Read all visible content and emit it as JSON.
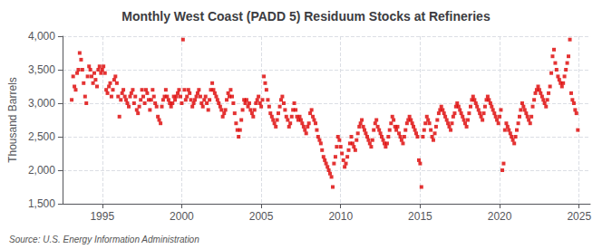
{
  "chart_data": {
    "type": "scatter",
    "title": "Monthly West Coast (PADD 5) Residuum Stocks at Refineries",
    "ylabel": "Thousand Barrels",
    "annotations": [
      "Source: U.S. Energy Information Administration"
    ],
    "color": "#dd0000",
    "marker": "square",
    "grid": true,
    "xlim": [
      1992.5,
      2025.7
    ],
    "xticks": [
      1995,
      2000,
      2005,
      2010,
      2015,
      2020,
      2025
    ],
    "ylim": [
      1500,
      4000
    ],
    "yticks": [
      {
        "value": 1500,
        "label": "1,500"
      },
      {
        "value": 2000,
        "label": "2,000"
      },
      {
        "value": 2500,
        "label": "2,500"
      },
      {
        "value": 3000,
        "label": "3,000"
      },
      {
        "value": 3500,
        "label": "3,500"
      },
      {
        "value": 4000,
        "label": "4,000"
      }
    ],
    "x": [
      1993.08,
      1993.17,
      1993.25,
      1993.33,
      1993.42,
      1993.5,
      1993.58,
      1993.67,
      1993.75,
      1993.83,
      1993.92,
      1994.0,
      1994.08,
      1994.17,
      1994.25,
      1994.33,
      1994.42,
      1994.5,
      1994.58,
      1994.67,
      1994.75,
      1994.83,
      1994.92,
      1995.0,
      1995.08,
      1995.17,
      1995.25,
      1995.33,
      1995.42,
      1995.5,
      1995.58,
      1995.67,
      1995.75,
      1995.83,
      1995.92,
      1996.0,
      1996.08,
      1996.17,
      1996.25,
      1996.33,
      1996.42,
      1996.5,
      1996.58,
      1996.67,
      1996.75,
      1996.83,
      1996.92,
      1997.0,
      1997.08,
      1997.17,
      1997.25,
      1997.33,
      1997.42,
      1997.5,
      1997.58,
      1997.67,
      1997.75,
      1997.83,
      1997.92,
      1998.0,
      1998.08,
      1998.17,
      1998.25,
      1998.33,
      1998.42,
      1998.5,
      1998.58,
      1998.67,
      1998.75,
      1998.83,
      1998.92,
      1999.0,
      1999.08,
      1999.17,
      1999.25,
      1999.33,
      1999.42,
      1999.5,
      1999.58,
      1999.67,
      1999.75,
      1999.83,
      1999.92,
      2000.0,
      2000.08,
      2000.17,
      2000.25,
      2000.33,
      2000.42,
      2000.5,
      2000.58,
      2000.67,
      2000.75,
      2000.83,
      2000.92,
      2001.0,
      2001.08,
      2001.17,
      2001.25,
      2001.33,
      2001.42,
      2001.5,
      2001.58,
      2001.67,
      2001.75,
      2001.83,
      2001.92,
      2002.0,
      2002.08,
      2002.17,
      2002.25,
      2002.33,
      2002.42,
      2002.5,
      2002.58,
      2002.67,
      2002.75,
      2002.83,
      2002.92,
      2003.0,
      2003.08,
      2003.17,
      2003.25,
      2003.33,
      2003.42,
      2003.5,
      2003.58,
      2003.67,
      2003.75,
      2003.83,
      2003.92,
      2004.0,
      2004.08,
      2004.17,
      2004.25,
      2004.33,
      2004.42,
      2004.5,
      2004.58,
      2004.67,
      2004.75,
      2004.83,
      2004.92,
      2005.0,
      2005.08,
      2005.17,
      2005.25,
      2005.33,
      2005.42,
      2005.5,
      2005.58,
      2005.67,
      2005.75,
      2005.83,
      2005.92,
      2006.0,
      2006.08,
      2006.17,
      2006.25,
      2006.33,
      2006.42,
      2006.5,
      2006.58,
      2006.67,
      2006.75,
      2006.83,
      2006.92,
      2007.0,
      2007.08,
      2007.17,
      2007.25,
      2007.33,
      2007.42,
      2007.5,
      2007.58,
      2007.67,
      2007.75,
      2007.83,
      2007.92,
      2008.0,
      2008.08,
      2008.17,
      2008.25,
      2008.33,
      2008.42,
      2008.5,
      2008.58,
      2008.67,
      2008.75,
      2008.83,
      2008.92,
      2009.0,
      2009.08,
      2009.17,
      2009.25,
      2009.33,
      2009.42,
      2009.5,
      2009.58,
      2009.67,
      2009.75,
      2009.83,
      2009.92,
      2010.0,
      2010.08,
      2010.17,
      2010.25,
      2010.33,
      2010.42,
      2010.5,
      2010.58,
      2010.67,
      2010.75,
      2010.83,
      2010.92,
      2011.0,
      2011.08,
      2011.17,
      2011.25,
      2011.33,
      2011.42,
      2011.5,
      2011.58,
      2011.67,
      2011.75,
      2011.83,
      2011.92,
      2012.0,
      2012.08,
      2012.17,
      2012.25,
      2012.33,
      2012.42,
      2012.5,
      2012.58,
      2012.67,
      2012.75,
      2012.83,
      2012.92,
      2013.0,
      2013.08,
      2013.17,
      2013.25,
      2013.33,
      2013.42,
      2013.5,
      2013.58,
      2013.67,
      2013.75,
      2013.83,
      2013.92,
      2014.0,
      2014.08,
      2014.17,
      2014.25,
      2014.33,
      2014.42,
      2014.5,
      2014.58,
      2014.67,
      2014.75,
      2014.83,
      2014.92,
      2015.0,
      2015.08,
      2015.17,
      2015.25,
      2015.33,
      2015.42,
      2015.5,
      2015.58,
      2015.67,
      2015.75,
      2015.83,
      2015.92,
      2016.0,
      2016.08,
      2016.17,
      2016.25,
      2016.33,
      2016.42,
      2016.5,
      2016.58,
      2016.67,
      2016.75,
      2016.83,
      2016.92,
      2017.0,
      2017.08,
      2017.17,
      2017.25,
      2017.33,
      2017.42,
      2017.5,
      2017.58,
      2017.67,
      2017.75,
      2017.83,
      2017.92,
      2018.0,
      2018.08,
      2018.17,
      2018.25,
      2018.33,
      2018.42,
      2018.5,
      2018.58,
      2018.67,
      2018.75,
      2018.83,
      2018.92,
      2019.0,
      2019.08,
      2019.17,
      2019.25,
      2019.33,
      2019.42,
      2019.5,
      2019.58,
      2019.67,
      2019.75,
      2019.83,
      2019.92,
      2020.0,
      2020.08,
      2020.17,
      2020.25,
      2020.33,
      2020.42,
      2020.5,
      2020.58,
      2020.67,
      2020.75,
      2020.83,
      2020.92,
      2021.0,
      2021.08,
      2021.17,
      2021.25,
      2021.33,
      2021.42,
      2021.5,
      2021.58,
      2021.67,
      2021.75,
      2021.83,
      2021.92,
      2022.0,
      2022.08,
      2022.17,
      2022.25,
      2022.33,
      2022.42,
      2022.5,
      2022.58,
      2022.67,
      2022.75,
      2022.83,
      2022.92,
      2023.0,
      2023.08,
      2023.17,
      2023.25,
      2023.33,
      2023.42,
      2023.5,
      2023.58,
      2023.67,
      2023.75,
      2023.83,
      2023.92,
      2024.0,
      2024.08,
      2024.17,
      2024.25,
      2024.33,
      2024.42,
      2024.5,
      2024.58,
      2024.67,
      2024.75,
      2024.83,
      2024.92
    ],
    "values": [
      3050,
      3400,
      3250,
      3200,
      3450,
      3500,
      3750,
      3650,
      3500,
      3300,
      3100,
      3000,
      3400,
      3550,
      3500,
      3400,
      3300,
      3450,
      3350,
      3250,
      3500,
      3550,
      3450,
      3500,
      3550,
      3450,
      3200,
      3150,
      3250,
      3300,
      3100,
      3200,
      3350,
      3400,
      3300,
      3100,
      2800,
      3050,
      3150,
      3200,
      3100,
      3050,
      3000,
      2950,
      3100,
      3150,
      3200,
      3000,
      3100,
      2900,
      2850,
      2950,
      3050,
      3200,
      3100,
      3000,
      3200,
      3150,
      3050,
      2900,
      3050,
      3200,
      3100,
      3000,
      2950,
      2800,
      2750,
      2700,
      2950,
      3050,
      3100,
      3200,
      3100,
      3050,
      3000,
      2950,
      3000,
      3100,
      3050,
      3100,
      3150,
      3200,
      3100,
      3000,
      3950,
      3200,
      3050,
      3100,
      3200,
      3150,
      3050,
      2950,
      3000,
      3050,
      3100,
      3150,
      3200,
      3100,
      3000,
      2950,
      3050,
      3100,
      3000,
      2900,
      3050,
      3200,
      3300,
      3200,
      3150,
      3100,
      3050,
      3000,
      2950,
      2900,
      2800,
      2850,
      2900,
      3050,
      3150,
      3100,
      3200,
      3100,
      3000,
      2850,
      2700,
      2600,
      2500,
      2600,
      2750,
      2900,
      3050,
      3000,
      3050,
      2950,
      3000,
      2900,
      2850,
      2800,
      2900,
      3000,
      3050,
      3100,
      3000,
      2950,
      3050,
      3400,
      3300,
      3200,
      3050,
      2950,
      2850,
      2800,
      2750,
      2700,
      2650,
      2750,
      2850,
      2950,
      3050,
      3100,
      3000,
      2900,
      2800,
      2750,
      2650,
      2700,
      2800,
      2900,
      3000,
      2900,
      2800,
      2750,
      2800,
      2750,
      2700,
      2650,
      2600,
      2550,
      2650,
      2700,
      2850,
      2900,
      2800,
      2750,
      2700,
      2600,
      2500,
      2450,
      2400,
      2300,
      2200,
      2150,
      2100,
      2050,
      2000,
      1950,
      1900,
      1750,
      2100,
      2200,
      2350,
      2500,
      2450,
      2350,
      2250,
      2150,
      2050,
      2100,
      2200,
      2300,
      2400,
      2500,
      2400,
      2350,
      2300,
      2450,
      2550,
      2650,
      2700,
      2750,
      2650,
      2600,
      2550,
      2500,
      2450,
      2400,
      2350,
      2450,
      2600,
      2700,
      2750,
      2650,
      2600,
      2550,
      2500,
      2450,
      2400,
      2350,
      2400,
      2500,
      2600,
      2700,
      2800,
      2750,
      2650,
      2600,
      2650,
      2550,
      2500,
      2450,
      2400,
      2500,
      2600,
      2700,
      2750,
      2800,
      2750,
      2700,
      2650,
      2600,
      2550,
      2500,
      2150,
      2100,
      1750,
      2500,
      2600,
      2700,
      2800,
      2750,
      2700,
      2600,
      2500,
      2450,
      2550,
      2650,
      2750,
      2850,
      2900,
      2950,
      2900,
      2850,
      2800,
      2750,
      2700,
      2650,
      2600,
      2700,
      2800,
      2850,
      2950,
      3000,
      2950,
      2900,
      2850,
      2800,
      2750,
      2700,
      2650,
      2750,
      2850,
      2950,
      3050,
      3100,
      3050,
      3000,
      2950,
      2900,
      2850,
      2800,
      2750,
      2850,
      2950,
      3050,
      3100,
      3050,
      3000,
      2950,
      2900,
      2850,
      2800,
      2750,
      2700,
      2800,
      2900,
      2000,
      2100,
      2600,
      2700,
      2650,
      2600,
      2550,
      2500,
      2450,
      2400,
      2500,
      2600,
      2700,
      2800,
      2900,
      3000,
      2950,
      2900,
      2850,
      2800,
      2750,
      2700,
      2800,
      2950,
      3050,
      3150,
      3200,
      3250,
      3200,
      3150,
      3100,
      3050,
      3000,
      2950,
      3050,
      3150,
      3250,
      3450,
      3700,
      3800,
      3600,
      3500,
      3400,
      3350,
      3300,
      3250,
      3300,
      3400,
      3500,
      3600,
      3700,
      3950,
      3150,
      3050,
      3000,
      2900,
      2850,
      2600
    ]
  }
}
